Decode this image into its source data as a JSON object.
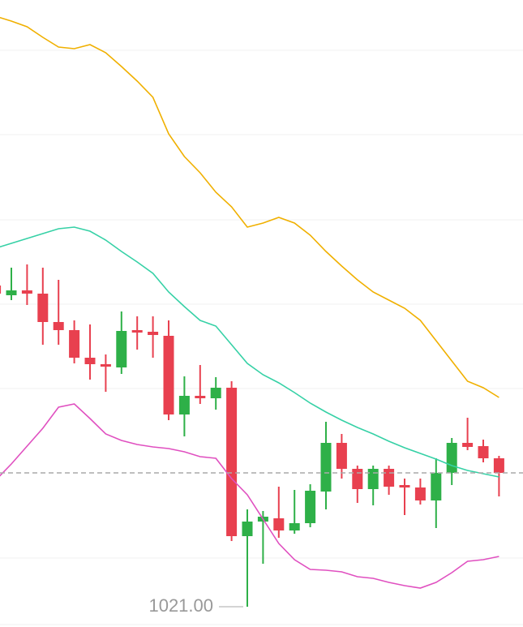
{
  "chart_data": {
    "type": "candlestick",
    "ylim": [
      1018.5,
      1095.8
    ],
    "up_color": "#2eb048",
    "down_color": "#e8404f",
    "open": [
      1060.6,
      1059.4,
      1060.0,
      1059.6,
      1056.1,
      1055.1,
      1051.7,
      1050.9,
      1050.5,
      1055.1,
      1054.9,
      1054.4,
      1044.7,
      1047.0,
      1046.7,
      1048.0,
      1029.7,
      1031.5,
      1031.9,
      1030.4,
      1031.3,
      1035.2,
      1041.2,
      1038.0,
      1035.5,
      1038.0,
      1036.0,
      1035.7,
      1034.1,
      1037.5,
      1041.2,
      1040.8,
      1039.3
    ],
    "high": [
      1062.8,
      1062.8,
      1063.2,
      1062.8,
      1061.3,
      1056.3,
      1055.8,
      1052.1,
      1057.4,
      1056.8,
      1056.8,
      1056.3,
      1049.4,
      1050.8,
      1049.3,
      1048.8,
      1033.0,
      1032.8,
      1035.8,
      1035.4,
      1036.1,
      1043.8,
      1042.3,
      1038.4,
      1038.4,
      1038.4,
      1036.8,
      1036.8,
      1039.3,
      1041.8,
      1044.3,
      1041.6,
      1039.6
    ],
    "low": [
      1059.3,
      1058.8,
      1058.2,
      1053.3,
      1053.3,
      1051.0,
      1049.0,
      1047.5,
      1049.7,
      1052.7,
      1051.7,
      1044.0,
      1042.0,
      1046.0,
      1045.3,
      1029.1,
      1021.0,
      1026.3,
      1029.5,
      1030.0,
      1030.8,
      1033.0,
      1036.8,
      1033.8,
      1033.5,
      1034.8,
      1032.3,
      1033.6,
      1030.7,
      1036.0,
      1040.3,
      1038.8,
      1034.6
    ],
    "close": [
      1059.6,
      1060.0,
      1059.6,
      1056.1,
      1055.1,
      1051.7,
      1050.9,
      1050.6,
      1055.0,
      1054.8,
      1054.5,
      1044.7,
      1047.0,
      1046.7,
      1048.0,
      1029.7,
      1031.5,
      1032.1,
      1030.4,
      1031.3,
      1035.3,
      1041.2,
      1038.0,
      1035.5,
      1038.0,
      1035.8,
      1035.7,
      1034.1,
      1037.5,
      1041.2,
      1040.7,
      1039.3,
      1037.5
    ],
    "bands": [
      {
        "color": "#f0b000",
        "values": [
          1093.8,
          1093.2,
          1092.5,
          1091.2,
          1090.0,
          1089.8,
          1090.3,
          1089.3,
          1087.6,
          1085.8,
          1083.8,
          1079.3,
          1076.5,
          1074.5,
          1072.1,
          1070.3,
          1067.8,
          1068.3,
          1069.0,
          1068.3,
          1066.8,
          1064.8,
          1063.0,
          1061.3,
          1059.8,
          1058.8,
          1057.8,
          1056.3,
          1053.8,
          1051.3,
          1048.8,
          1048.0,
          1046.8
        ]
      },
      {
        "color": "#36d1a6",
        "values": [
          1065.2,
          1065.8,
          1066.4,
          1067.0,
          1067.6,
          1067.8,
          1067.3,
          1066.2,
          1064.8,
          1063.5,
          1062.1,
          1059.8,
          1058.0,
          1056.3,
          1055.6,
          1053.3,
          1051.0,
          1049.6,
          1048.6,
          1047.4,
          1046.1,
          1045.0,
          1044.0,
          1043.1,
          1042.3,
          1041.4,
          1040.6,
          1039.9,
          1039.2,
          1038.4,
          1037.8,
          1037.4,
          1037.0
        ]
      },
      {
        "color": "#e050c0",
        "values": [
          1036.6,
          1038.6,
          1040.8,
          1043.0,
          1045.6,
          1046.0,
          1044.2,
          1042.3,
          1041.5,
          1041.0,
          1040.7,
          1040.5,
          1040.1,
          1039.5,
          1039.3,
          1036.8,
          1034.8,
          1031.8,
          1028.8,
          1026.8,
          1025.6,
          1025.5,
          1025.3,
          1024.7,
          1024.5,
          1024.0,
          1023.6,
          1023.3,
          1024.0,
          1025.2,
          1026.6,
          1026.8,
          1027.2
        ]
      }
    ],
    "last_price_line": true,
    "annotations": [
      {
        "text": "1021.00",
        "value": 1021.0
      }
    ]
  }
}
